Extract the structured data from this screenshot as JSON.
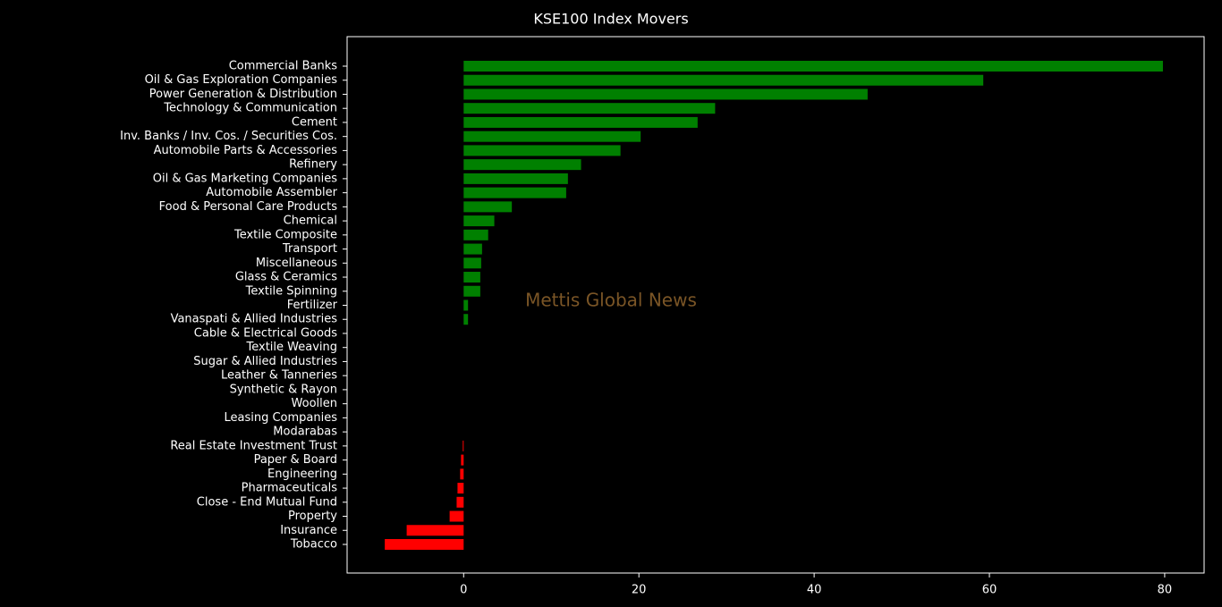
{
  "chart_data": {
    "type": "barh",
    "title": "KSE100 Index Movers",
    "watermark": "Mettis Global News",
    "categories": [
      "Commercial Banks",
      "Oil & Gas Exploration Companies",
      "Power Generation & Distribution",
      "Technology & Communication",
      "Cement",
      "Inv. Banks / Inv. Cos. / Securities Cos.",
      "Automobile Parts & Accessories",
      "Refinery",
      "Oil & Gas Marketing Companies",
      "Automobile Assembler",
      "Food & Personal Care Products",
      "Chemical",
      "Textile Composite",
      "Transport",
      "Miscellaneous",
      "Glass & Ceramics",
      "Textile Spinning",
      "Fertilizer",
      "Vanaspati & Allied Industries",
      "Cable & Electrical Goods",
      "Textile Weaving",
      "Sugar & Allied Industries",
      "Leather & Tanneries",
      "Synthetic & Rayon",
      "Woollen",
      "Leasing Companies",
      "Modarabas",
      "Real Estate Investment Trust",
      "Paper & Board",
      "Engineering",
      "Pharmaceuticals",
      "Close - End Mutual Fund",
      "Property",
      "Insurance",
      "Tobacco"
    ],
    "values": [
      79.8,
      59.3,
      46.1,
      28.7,
      26.7,
      20.2,
      17.9,
      13.4,
      11.9,
      11.7,
      5.5,
      3.5,
      2.8,
      2.1,
      2.0,
      1.9,
      1.9,
      0.5,
      0.5,
      0,
      0,
      0,
      0,
      0,
      0,
      0,
      0,
      -0.1,
      -0.3,
      -0.4,
      -0.7,
      -0.8,
      -1.6,
      -6.5,
      -9.0
    ],
    "positive_color": "green",
    "negative_color": "red",
    "xlim": [
      -13.3,
      84.5
    ],
    "xticks": [
      0,
      20,
      40,
      60,
      80
    ]
  }
}
